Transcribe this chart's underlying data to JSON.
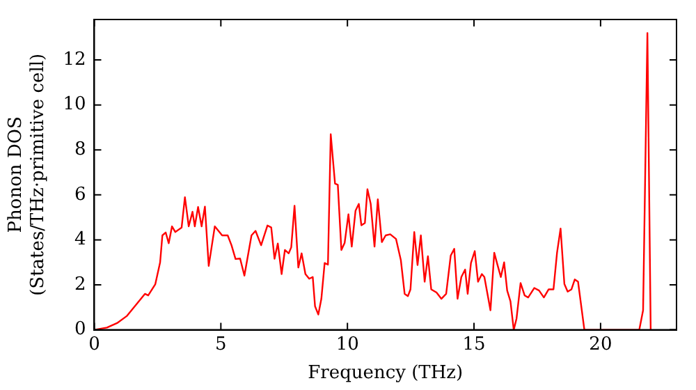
{
  "chart_data": {
    "type": "line",
    "xlabel": "Frequency (THz)",
    "ylabel": "Phonon DOS\n(States/THz·primitive cell)",
    "xlim": [
      0,
      23
    ],
    "ylim": [
      0,
      13.8
    ],
    "xticks": [
      0,
      5,
      10,
      15,
      20
    ],
    "yticks": [
      0,
      2,
      4,
      6,
      8,
      10,
      12
    ],
    "grid": false,
    "legend": false,
    "marker": "none",
    "line_style": "solid",
    "x": [
      0,
      0.5,
      0.9,
      1.28,
      2.0,
      2.13,
      2.41,
      2.6,
      2.69,
      2.82,
      2.94,
      3.07,
      3.2,
      3.45,
      3.58,
      3.73,
      3.88,
      3.97,
      4.1,
      4.24,
      4.37,
      4.52,
      4.76,
      5.05,
      5.27,
      5.42,
      5.58,
      5.76,
      5.93,
      6.21,
      6.37,
      6.59,
      6.84,
      6.99,
      7.12,
      7.25,
      7.4,
      7.53,
      7.68,
      7.78,
      7.91,
      8.06,
      8.19,
      8.34,
      8.49,
      8.63,
      8.72,
      8.85,
      8.97,
      9.1,
      9.23,
      9.34,
      9.51,
      9.62,
      9.76,
      9.89,
      10.04,
      10.17,
      10.32,
      10.45,
      10.55,
      10.69,
      10.79,
      10.92,
      11.07,
      11.2,
      11.36,
      11.51,
      11.69,
      11.92,
      12.11,
      12.26,
      12.39,
      12.49,
      12.64,
      12.77,
      12.9,
      13.05,
      13.18,
      13.31,
      13.52,
      13.71,
      13.9,
      14.08,
      14.22,
      14.35,
      14.5,
      14.65,
      14.75,
      14.88,
      15.03,
      15.16,
      15.31,
      15.41,
      15.65,
      15.8,
      15.93,
      16.06,
      16.19,
      16.31,
      16.44,
      16.57,
      16.68,
      16.84,
      17.0,
      17.14,
      17.38,
      17.57,
      17.76,
      17.95,
      18.14,
      18.28,
      18.42,
      18.57,
      18.7,
      18.85,
      18.98,
      19.11,
      19.36,
      21.53,
      21.68,
      21.85,
      21.98
    ],
    "series": [
      {
        "color": "#ff0000",
        "values": [
          0,
          0.1,
          0.3,
          0.61,
          1.6,
          1.53,
          2.03,
          3.0,
          4.2,
          4.33,
          3.85,
          4.6,
          4.35,
          4.55,
          5.9,
          4.6,
          5.25,
          4.6,
          5.46,
          4.6,
          5.48,
          2.84,
          4.6,
          4.2,
          4.2,
          3.76,
          3.15,
          3.17,
          2.41,
          4.2,
          4.4,
          3.76,
          4.64,
          4.55,
          3.16,
          3.84,
          2.48,
          3.55,
          3.4,
          3.67,
          5.52,
          2.77,
          3.4,
          2.48,
          2.27,
          2.35,
          1.05,
          0.68,
          1.38,
          2.97,
          2.9,
          8.7,
          6.5,
          6.45,
          3.55,
          3.87,
          5.14,
          3.7,
          5.3,
          5.6,
          4.65,
          4.75,
          6.25,
          5.6,
          3.7,
          5.8,
          3.9,
          4.2,
          4.25,
          4.04,
          3.1,
          1.6,
          1.5,
          1.8,
          4.35,
          2.88,
          4.2,
          2.14,
          3.27,
          1.8,
          1.66,
          1.38,
          1.6,
          3.3,
          3.6,
          1.38,
          2.35,
          2.68,
          1.6,
          2.97,
          3.5,
          2.14,
          2.48,
          2.35,
          0.87,
          3.43,
          2.88,
          2.35,
          3.0,
          1.75,
          1.27,
          0,
          0.5,
          2.08,
          1.53,
          1.44,
          1.86,
          1.75,
          1.44,
          1.8,
          1.8,
          3.43,
          4.5,
          2.04,
          1.7,
          1.8,
          2.24,
          2.14,
          0,
          0,
          0.87,
          13.2,
          0
        ]
      }
    ]
  }
}
